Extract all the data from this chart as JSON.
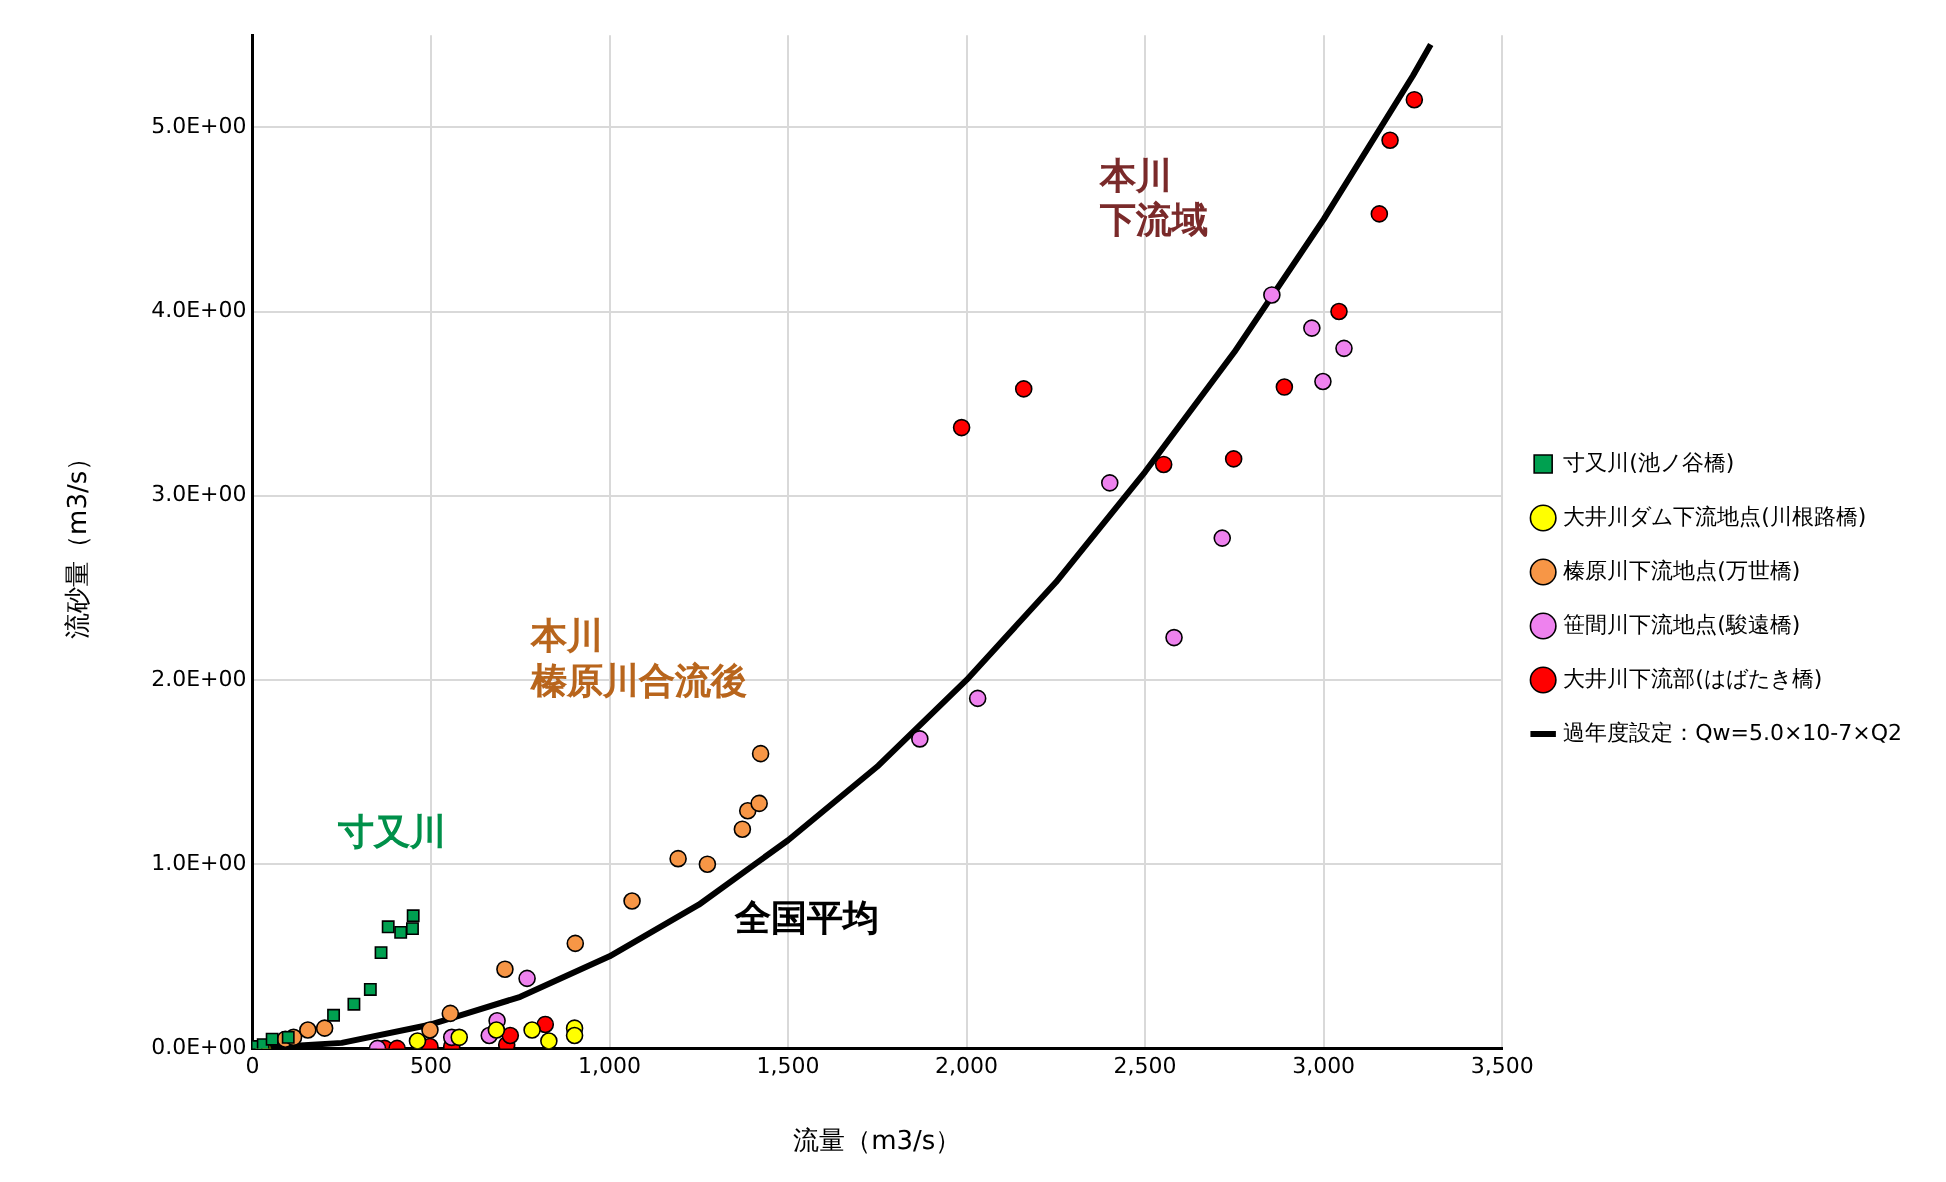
{
  "chart_data": {
    "type": "scatter",
    "xlabel": "流量（m3/s）",
    "ylabel": "流砂量（m3/s）",
    "xlim": [
      0,
      3500
    ],
    "xticks": [
      0,
      500,
      {
        "value": 1000,
        "label": "1,000"
      },
      {
        "value": 1500,
        "label": "1,500"
      },
      {
        "value": 2000,
        "label": "2,000"
      },
      {
        "value": 2500,
        "label": "2,500"
      },
      {
        "value": 3000,
        "label": "3,000"
      },
      {
        "value": 3500,
        "label": "3,500"
      }
    ],
    "ylim": [
      0,
      5.5
    ],
    "yticks": [
      {
        "value": 0,
        "label": "0.0E+00"
      },
      {
        "value": 1,
        "label": "1.0E+00"
      },
      {
        "value": 2,
        "label": "2.0E+00"
      },
      {
        "value": 3,
        "label": "3.0E+00"
      },
      {
        "value": 4,
        "label": "4.0E+00"
      },
      {
        "value": 5,
        "label": "5.0E+00"
      }
    ],
    "grid": true,
    "legend": "right",
    "series": [
      {
        "name": "寸又川(池ノ谷橋)",
        "marker": "square",
        "color": "#00a050",
        "x": [
          10,
          30,
          55,
          100,
          227,
          284,
          330,
          360,
          380,
          415,
          448,
          450
        ],
        "values": [
          0.01,
          0.02,
          0.05,
          0.06,
          0.18,
          0.24,
          0.32,
          0.52,
          0.66,
          0.63,
          0.65,
          0.72
        ]
      },
      {
        "name": "大井川ダム下流地点(川根路橋)",
        "marker": "circle",
        "color": "#ffff00",
        "x": [
          30,
          462,
          579,
          683,
          783,
          830,
          902,
          902
        ],
        "values": [
          0.0,
          0.04,
          0.06,
          0.1,
          0.1,
          0.04,
          0.11,
          0.07
        ]
      },
      {
        "name": "榛原川下流地点(万世橋)",
        "marker": "circle",
        "color": "#f79646",
        "x": [
          92,
          115,
          155,
          202,
          497,
          554,
          707,
          904,
          1063,
          1192,
          1274,
          1372,
          1387,
          1419,
          1423
        ],
        "values": [
          0.05,
          0.06,
          0.1,
          0.11,
          0.1,
          0.19,
          0.43,
          0.57,
          0.8,
          1.03,
          1.0,
          1.19,
          1.29,
          1.33,
          1.6
        ]
      },
      {
        "name": "笹間川下流地点(駿遠橋)",
        "marker": "circle",
        "color": "#ee82ee",
        "x": [
          350,
          558,
          663,
          685,
          769,
          1869,
          2031,
          2401,
          2581,
          2716,
          2855,
          2967,
          2998,
          3057
        ],
        "values": [
          0.0,
          0.06,
          0.07,
          0.15,
          0.38,
          1.68,
          1.9,
          3.07,
          2.23,
          2.77,
          4.09,
          3.91,
          3.62,
          3.8
        ]
      },
      {
        "name": "大井川下流部(はばたき橋)",
        "marker": "circle",
        "color": "#ff0000",
        "x": [
          370,
          405,
          497,
          558,
          712,
          722,
          820,
          1986,
          2160,
          2552,
          2748,
          2890,
          3043,
          3156,
          3186,
          3254
        ],
        "values": [
          0.0,
          0.0,
          0.01,
          0.01,
          0.02,
          0.07,
          0.13,
          3.37,
          3.58,
          3.17,
          3.2,
          3.59,
          4.0,
          4.53,
          4.93,
          5.15
        ]
      },
      {
        "name": "過年度設定：Qw=5.0×10-7×Q2",
        "type": "line",
        "marker": "none",
        "color": "#000000",
        "x": [
          0,
          250,
          500,
          750,
          1000,
          1250,
          1500,
          1750,
          2000,
          2250,
          2500,
          2750,
          3000,
          3250,
          3300
        ],
        "values": [
          0,
          0.03,
          0.13,
          0.28,
          0.5,
          0.78,
          1.13,
          1.53,
          2.0,
          2.53,
          3.13,
          3.78,
          4.5,
          5.28,
          5.45
        ]
      }
    ],
    "annotations": [
      "寸又川",
      "本川",
      "榛原川合流後",
      "全国平均",
      "本川",
      "下流域"
    ]
  }
}
